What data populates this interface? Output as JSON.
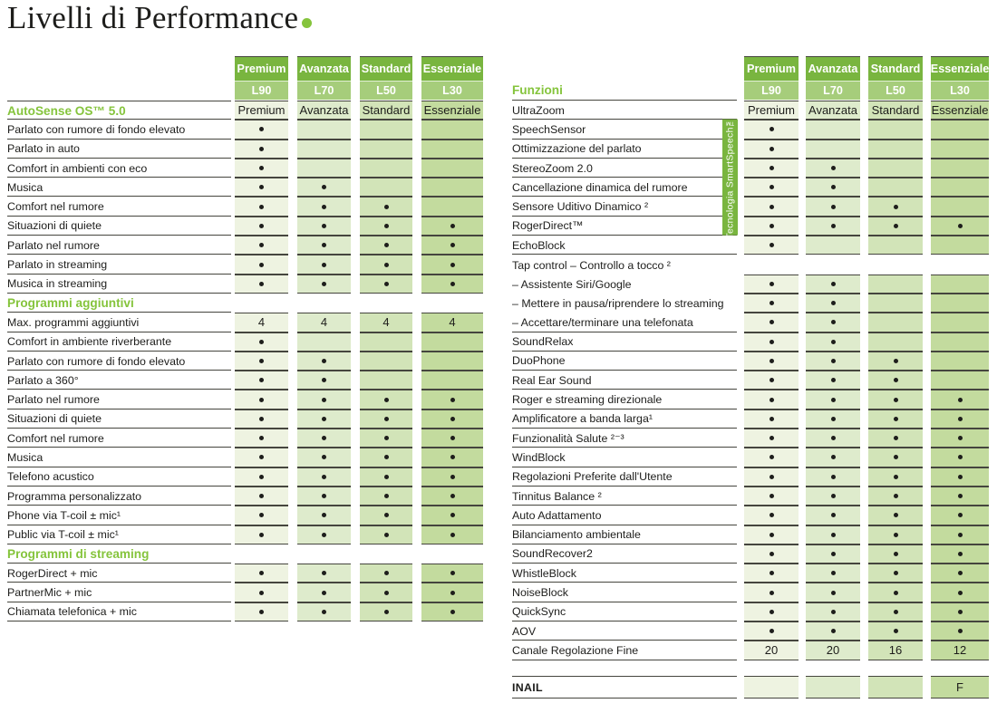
{
  "title": "Livelli di Performance",
  "levels": [
    {
      "name": "Premium",
      "model": "L90"
    },
    {
      "name": "Avanzata",
      "model": "L70"
    },
    {
      "name": "Standard",
      "model": "L50"
    },
    {
      "name": "Essenziale",
      "model": "L30"
    }
  ],
  "banner_label": "Tecnologia SmartSpeech™",
  "colors": {
    "header_band_top": "#79b53f",
    "header_band_bottom": "#a6cd7b",
    "section_heading": "#85c43c",
    "column_fills": [
      "#eef3e1",
      "#deebcc",
      "#d2e4b8",
      "#c3db9e"
    ],
    "grid_line": "#45453e",
    "text": "#1d1d1b",
    "dot": "#1e1e1c",
    "banner_bg": "#79b53f",
    "title_dot": "#85c43c"
  },
  "left_table": {
    "rows": [
      {
        "label": "AutoSense OS™ 5.0",
        "heading": true,
        "topline": true,
        "cells": "level_names"
      },
      {
        "label": "Parlato con rumore di fondo elevato",
        "cells": [
          "dot",
          "",
          "",
          ""
        ]
      },
      {
        "label": "Parlato in auto",
        "cells": [
          "dot",
          "",
          "",
          ""
        ]
      },
      {
        "label": "Comfort in ambienti con eco",
        "cells": [
          "dot",
          "",
          "",
          ""
        ]
      },
      {
        "label": "Musica",
        "cells": [
          "dot",
          "dot",
          "",
          ""
        ]
      },
      {
        "label": "Comfort nel rumore",
        "cells": [
          "dot",
          "dot",
          "dot",
          ""
        ]
      },
      {
        "label": "Situazioni di quiete",
        "cells": [
          "dot",
          "dot",
          "dot",
          "dot"
        ]
      },
      {
        "label": "Parlato nel rumore",
        "cells": [
          "dot",
          "dot",
          "dot",
          "dot"
        ]
      },
      {
        "label": "Parlato in streaming",
        "cells": [
          "dot",
          "dot",
          "dot",
          "dot"
        ]
      },
      {
        "label": "Musica in streaming",
        "cells": [
          "dot",
          "dot",
          "dot",
          "dot"
        ]
      },
      {
        "label": "Programmi aggiuntivi",
        "heading": true,
        "cells": null
      },
      {
        "label": "Max. programmi aggiuntivi",
        "cells": [
          "4",
          "4",
          "4",
          "4"
        ]
      },
      {
        "label": "Comfort in ambiente riverberante",
        "cells": [
          "dot",
          "",
          "",
          ""
        ]
      },
      {
        "label": "Parlato con rumore di fondo elevato",
        "cells": [
          "dot",
          "dot",
          "",
          ""
        ]
      },
      {
        "label": "Parlato a 360°",
        "cells": [
          "dot",
          "dot",
          "",
          ""
        ]
      },
      {
        "label": "Parlato nel rumore",
        "cells": [
          "dot",
          "dot",
          "dot",
          "dot"
        ]
      },
      {
        "label": "Situazioni di quiete",
        "cells": [
          "dot",
          "dot",
          "dot",
          "dot"
        ]
      },
      {
        "label": "Comfort nel rumore",
        "cells": [
          "dot",
          "dot",
          "dot",
          "dot"
        ]
      },
      {
        "label": "Musica",
        "cells": [
          "dot",
          "dot",
          "dot",
          "dot"
        ]
      },
      {
        "label": "Telefono acustico",
        "cells": [
          "dot",
          "dot",
          "dot",
          "dot"
        ]
      },
      {
        "label": "Programma personalizzato",
        "cells": [
          "dot",
          "dot",
          "dot",
          "dot"
        ]
      },
      {
        "label": "Phone via T-coil ± mic¹",
        "cells": [
          "dot",
          "dot",
          "dot",
          "dot"
        ]
      },
      {
        "label": "Public via T-coil ± mic¹",
        "cells": [
          "dot",
          "dot",
          "dot",
          "dot"
        ]
      },
      {
        "label": "Programmi di streaming",
        "heading": true,
        "cells": null
      },
      {
        "label": "RogerDirect + mic",
        "cells": [
          "dot",
          "dot",
          "dot",
          "dot"
        ]
      },
      {
        "label": "PartnerMic + mic",
        "cells": [
          "dot",
          "dot",
          "dot",
          "dot"
        ]
      },
      {
        "label": "Chiamata telefonica + mic",
        "cells": [
          "dot",
          "dot",
          "dot",
          "dot"
        ]
      }
    ]
  },
  "right_table": {
    "rows": [
      {
        "label": "Funzioni",
        "heading": true,
        "kind": "funzioni",
        "cells": null
      },
      {
        "label": "UltraZoom",
        "cells": "level_names"
      },
      {
        "label": "SpeechSensor",
        "cells": [
          "dot",
          "",
          "",
          ""
        ]
      },
      {
        "label": "Ottimizzazione del parlato",
        "cells": [
          "dot",
          "",
          "",
          ""
        ]
      },
      {
        "label": "StereoZoom 2.0",
        "cells": [
          "dot",
          "dot",
          "",
          ""
        ]
      },
      {
        "label": "Cancellazione dinamica del rumore",
        "cells": [
          "dot",
          "dot",
          "",
          ""
        ]
      },
      {
        "label": "Sensore Uditivo Dinamico ²",
        "cells": [
          "dot",
          "dot",
          "dot",
          ""
        ]
      },
      {
        "label": "RogerDirect™",
        "cells": [
          "dot",
          "dot",
          "dot",
          "dot"
        ]
      },
      {
        "label": "EchoBlock",
        "cells": [
          "dot",
          "",
          "",
          ""
        ]
      },
      {
        "label": "Tap control – Controllo a tocco ²",
        "noline": true,
        "cells": null
      },
      {
        "label": "– Assistente Siri/Google",
        "noline": true,
        "cells": [
          "dot",
          "dot",
          "",
          ""
        ]
      },
      {
        "label": "– Mettere in pausa/riprendere lo streaming",
        "noline": true,
        "cells": [
          "dot",
          "dot",
          "",
          ""
        ]
      },
      {
        "label": "– Accettare/terminare una telefonata",
        "cells": [
          "dot",
          "dot",
          "",
          ""
        ]
      },
      {
        "label": "SoundRelax",
        "cells": [
          "dot",
          "dot",
          "",
          ""
        ]
      },
      {
        "label": "DuoPhone",
        "cells": [
          "dot",
          "dot",
          "dot",
          ""
        ]
      },
      {
        "label": "Real Ear Sound",
        "cells": [
          "dot",
          "dot",
          "dot",
          ""
        ]
      },
      {
        "label": "Roger e streaming direzionale",
        "cells": [
          "dot",
          "dot",
          "dot",
          "dot"
        ]
      },
      {
        "label": "Amplificatore a banda larga¹",
        "cells": [
          "dot",
          "dot",
          "dot",
          "dot"
        ]
      },
      {
        "label": "Funzionalità Salute ²⁻³",
        "cells": [
          "dot",
          "dot",
          "dot",
          "dot"
        ]
      },
      {
        "label": "WindBlock",
        "cells": [
          "dot",
          "dot",
          "dot",
          "dot"
        ]
      },
      {
        "label": "Regolazioni Preferite dall'Utente",
        "cells": [
          "dot",
          "dot",
          "dot",
          "dot"
        ]
      },
      {
        "label": "Tinnitus Balance ²",
        "cells": [
          "dot",
          "dot",
          "dot",
          "dot"
        ]
      },
      {
        "label": "Auto Adattamento",
        "cells": [
          "dot",
          "dot",
          "dot",
          "dot"
        ]
      },
      {
        "label": "Bilanciamento ambientale",
        "cells": [
          "dot",
          "dot",
          "dot",
          "dot"
        ]
      },
      {
        "label": "SoundRecover2",
        "cells": [
          "dot",
          "dot",
          "dot",
          "dot"
        ]
      },
      {
        "label": "WhistleBlock",
        "cells": [
          "dot",
          "dot",
          "dot",
          "dot"
        ]
      },
      {
        "label": "NoiseBlock",
        "cells": [
          "dot",
          "dot",
          "dot",
          "dot"
        ]
      },
      {
        "label": "QuickSync",
        "cells": [
          "dot",
          "dot",
          "dot",
          "dot"
        ]
      },
      {
        "label": "AOV",
        "cells": [
          "dot",
          "dot",
          "dot",
          "dot"
        ]
      },
      {
        "label": "Canale Regolazione Fine",
        "cells": [
          "20",
          "20",
          "16",
          "12"
        ]
      },
      {
        "label": "",
        "spacer": true
      },
      {
        "label": "INAIL",
        "bold": true,
        "topline": true,
        "kind": "inail",
        "cells": [
          "",
          "",
          "",
          "F"
        ]
      }
    ]
  }
}
